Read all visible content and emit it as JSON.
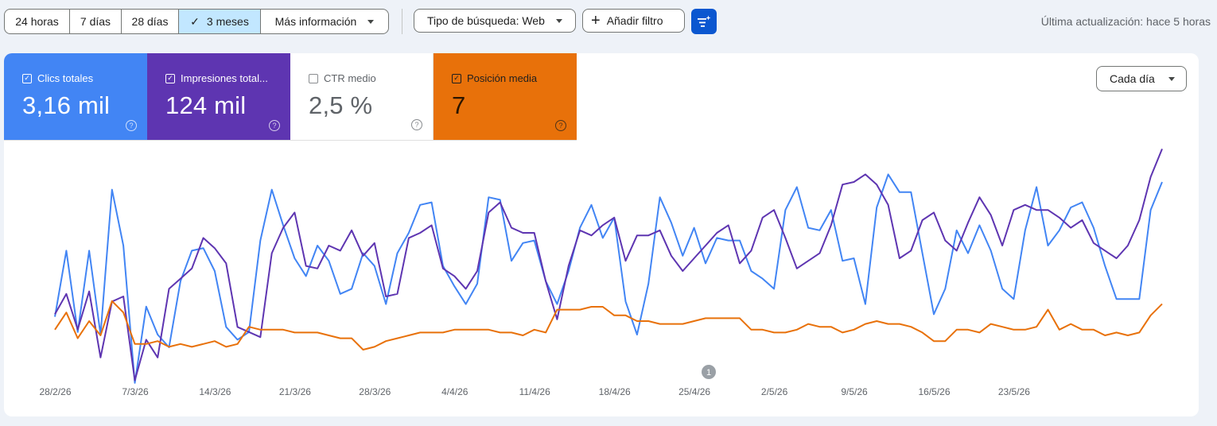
{
  "toolbar": {
    "ranges": [
      "24 horas",
      "7 días",
      "28 días",
      "3 meses",
      "Más información"
    ],
    "active_range_index": 3,
    "search_type": "Tipo de búsqueda: Web",
    "add_filter": "Añadir filtro",
    "last_updated": "Última actualización: hace 5 horas"
  },
  "metrics": [
    {
      "label": "Clics totales",
      "value": "3,16 mil",
      "checked": true,
      "color": "#4285f4"
    },
    {
      "label": "Impresiones total...",
      "value": "124 mil",
      "checked": true,
      "color": "#5e35b1"
    },
    {
      "label": "CTR medio",
      "value": "2,5 %",
      "checked": false,
      "color": "#ffffff"
    },
    {
      "label": "Posición media",
      "value": "7",
      "checked": true,
      "color": "#e8710a"
    }
  ],
  "help_glyph": "?",
  "granularity": "Cada día",
  "annotation": "1",
  "chart_data": {
    "type": "line",
    "xlabel": "",
    "ylabel": "",
    "x_ticks": [
      "28/2/26",
      "7/3/26",
      "14/3/26",
      "21/3/26",
      "28/3/26",
      "4/4/26",
      "11/4/26",
      "18/4/26",
      "25/4/26",
      "2/5/26",
      "9/5/26",
      "16/5/26",
      "23/5/26"
    ],
    "x_range": [
      "2026-02-28",
      "2026-05-27"
    ],
    "grid": false,
    "series": [
      {
        "color": "#4285f4",
        "values": [
          22,
          48,
          16,
          48,
          15,
          72,
          50,
          -4,
          26,
          15,
          10,
          36,
          48,
          49,
          40,
          18,
          13,
          16,
          52,
          72,
          58,
          45,
          38,
          50,
          44,
          31,
          33,
          47,
          42,
          27,
          47,
          55,
          66,
          67,
          42,
          34,
          27,
          35,
          69,
          68,
          44,
          51,
          52,
          36,
          27,
          40,
          57,
          66,
          53,
          61,
          28,
          15,
          35,
          69,
          59,
          46,
          57,
          43,
          53,
          52,
          52,
          40,
          37,
          33,
          64,
          73,
          57,
          56,
          64,
          44,
          45,
          27,
          65,
          78,
          71,
          71,
          47,
          23,
          33,
          56,
          47,
          58,
          48,
          33,
          29,
          56,
          73,
          50,
          56,
          65,
          67,
          57,
          42,
          29,
          29,
          29,
          64,
          75
        ]
      },
      {
        "color": "#5e35b1",
        "values": [
          23,
          31,
          17,
          32,
          6,
          28,
          30,
          -3,
          13,
          6,
          33,
          37,
          41,
          53,
          49,
          43,
          18,
          16,
          14,
          47,
          57,
          63,
          42,
          41,
          50,
          48,
          56,
          46,
          51,
          30,
          31,
          53,
          55,
          58,
          41,
          38,
          33,
          40,
          63,
          67,
          57,
          55,
          55,
          36,
          21,
          42,
          56,
          54,
          58,
          61,
          44,
          54,
          54,
          56,
          46,
          40,
          45,
          50,
          55,
          58,
          43,
          48,
          61,
          64,
          53,
          41,
          44,
          47,
          58,
          74,
          75,
          78,
          74,
          66,
          45,
          48,
          60,
          63,
          52,
          48,
          59,
          69,
          62,
          50,
          64,
          66,
          64,
          64,
          61,
          57,
          60,
          51,
          48,
          45,
          50,
          60,
          77,
          88
        ]
      },
      {
        "color": "#e8710a",
        "values": [
          5.8,
          5.2,
          6.1,
          5.5,
          6.0,
          4.8,
          5.2,
          6.3,
          6.3,
          6.2,
          6.4,
          6.3,
          6.4,
          6.3,
          6.2,
          6.4,
          6.3,
          5.7,
          5.8,
          5.8,
          5.8,
          5.9,
          5.9,
          5.9,
          6.0,
          6.1,
          6.1,
          6.5,
          6.4,
          6.2,
          6.1,
          6.0,
          5.9,
          5.9,
          5.9,
          5.8,
          5.8,
          5.8,
          5.8,
          5.9,
          5.9,
          6.0,
          5.8,
          5.9,
          5.1,
          5.1,
          5.1,
          5.0,
          5.0,
          5.3,
          5.3,
          5.5,
          5.5,
          5.6,
          5.6,
          5.6,
          5.5,
          5.4,
          5.4,
          5.4,
          5.4,
          5.8,
          5.8,
          5.9,
          5.9,
          5.8,
          5.6,
          5.7,
          5.7,
          5.9,
          5.8,
          5.6,
          5.5,
          5.6,
          5.6,
          5.7,
          5.9,
          6.2,
          6.2,
          5.8,
          5.8,
          5.9,
          5.6,
          5.7,
          5.8,
          5.8,
          5.7,
          5.1,
          5.8,
          5.6,
          5.8,
          5.8,
          6.0,
          5.9,
          6.0,
          5.9,
          5.3,
          4.9
        ]
      }
    ]
  }
}
